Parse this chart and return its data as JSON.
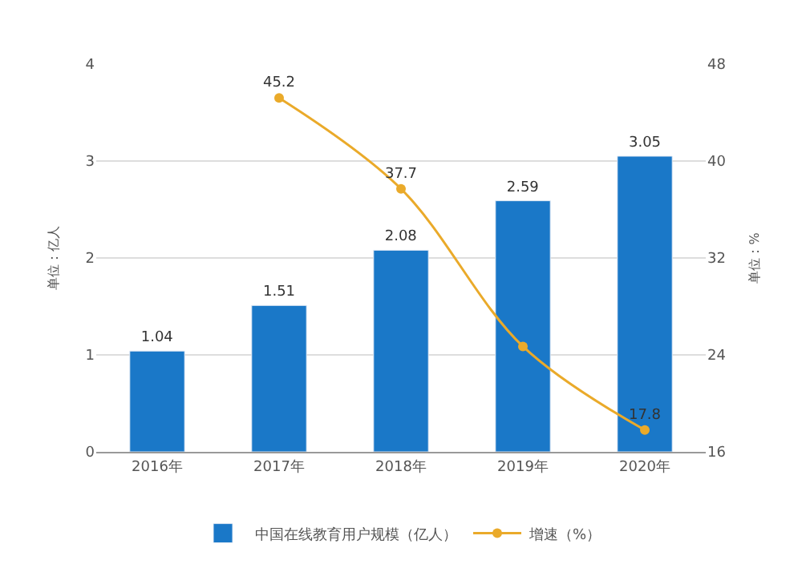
{
  "chart_data": {
    "type": "bar",
    "categories": [
      "2016年",
      "2017年",
      "2018年",
      "2019年",
      "2020年"
    ],
    "series": [
      {
        "name": "中国在线教育用户规模（亿人）",
        "color": "#1a78c8",
        "values": [
          1.04,
          1.51,
          2.08,
          2.59,
          3.05
        ],
        "value_labels": [
          "1.04",
          "1.51",
          "2.08",
          "2.59",
          "3.05"
        ]
      },
      {
        "name": "增速（%）",
        "type": "line",
        "axis": "y2",
        "color": "#eaaa2a",
        "values": [
          null,
          45.2,
          37.7,
          24.7,
          17.8
        ],
        "value_labels": [
          null,
          "45.2",
          "37.7",
          null,
          "17.8"
        ]
      }
    ],
    "ylabel": "单位：亿人",
    "y2label": "单位：%",
    "ylim": [
      0,
      4
    ],
    "yticks": [
      0,
      1,
      2,
      3,
      4
    ],
    "y2lim": [
      16,
      48
    ],
    "y2ticks": [
      16,
      24,
      32,
      40,
      48
    ],
    "grid": "y",
    "legend": "bottom",
    "marker": "circle",
    "line_style": "solid"
  }
}
